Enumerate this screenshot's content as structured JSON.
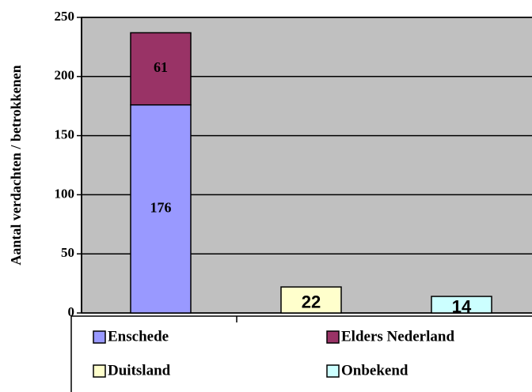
{
  "chart_data": {
    "type": "stacked-bar",
    "y_label": "Aantal verdachten / betrokkenen",
    "categories": [
      null,
      null,
      null
    ],
    "series": [
      {
        "name": "Enschede",
        "color": "#9999ff",
        "values": [
          176,
          null,
          null
        ]
      },
      {
        "name": "Elders Nederland",
        "color": "#993366",
        "values": [
          61,
          null,
          null
        ]
      },
      {
        "name": "Duitsland",
        "color": "#ffffcc",
        "values": [
          null,
          22,
          null
        ]
      },
      {
        "name": "Onbekend",
        "color": "#ccffff",
        "values": [
          null,
          null,
          14
        ]
      }
    ],
    "ylim": [
      0,
      250
    ],
    "yticks": [
      0,
      50,
      100,
      150,
      200,
      250
    ],
    "grid": true,
    "plot_background": "#c0c0c0",
    "legend": "bottom"
  }
}
